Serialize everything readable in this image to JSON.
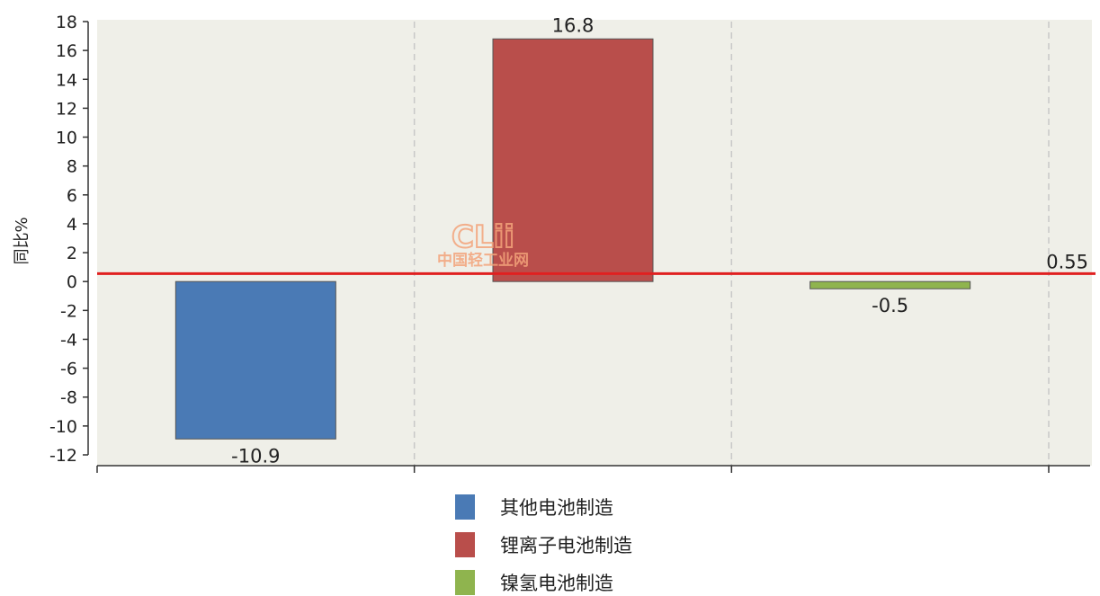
{
  "chart_data": {
    "type": "bar",
    "ylabel": "同比%",
    "ylim": [
      -12,
      18
    ],
    "yticks": [
      -12,
      -10,
      -8,
      -6,
      -4,
      -2,
      0,
      2,
      4,
      6,
      8,
      10,
      12,
      14,
      16,
      18
    ],
    "grid": "vertical dashed",
    "legend_position": "bottom",
    "series": [
      {
        "name": "其他电池制造",
        "value": -10.9,
        "label": "-10.9",
        "color": "#4a7ab5"
      },
      {
        "name": "锂离子电池制造",
        "value": 16.8,
        "label": "16.8",
        "color": "#b94e4b"
      },
      {
        "name": "镍氢电池制造",
        "value": -0.5,
        "label": "-0.5",
        "color": "#8fb44e"
      }
    ],
    "reference_line": {
      "value": 0.55,
      "label": "0.55",
      "color": "#e02020"
    }
  },
  "watermark": {
    "logo": "CLii",
    "text": "中国轻工业网"
  }
}
